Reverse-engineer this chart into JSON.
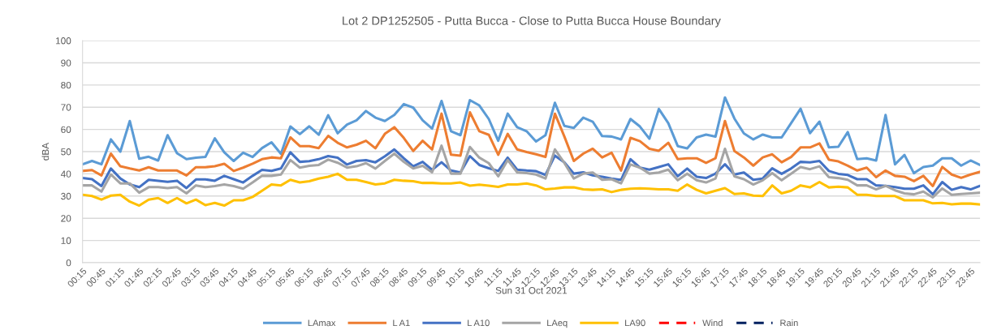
{
  "chart_data": {
    "type": "line",
    "title": "Lot 2 DP1252505 - Putta Bucca - Close to Putta Bucca House Boundary",
    "xlabel": "Sun 31 Oct 2021",
    "ylabel": "dBA",
    "categories": [
      "00:15",
      null,
      "00:45",
      null,
      "01:15",
      null,
      "01:45",
      null,
      "02:15",
      null,
      "02:45",
      null,
      "03:15",
      null,
      "03:45",
      null,
      "04:15",
      null,
      "04:45",
      null,
      "05:15",
      null,
      "05:45",
      null,
      "06:15",
      null,
      "06:45",
      null,
      "07:15",
      null,
      "07:45",
      null,
      "08:15",
      null,
      "08:45",
      null,
      "09:15",
      null,
      "09:45",
      null,
      "10:15",
      null,
      "10:45",
      null,
      "11:15",
      null,
      "11:45",
      null,
      "12:15",
      null,
      "12:45",
      null,
      "13:15",
      null,
      "13:45",
      null,
      "14:15",
      null,
      "14:45",
      null,
      "15:15",
      null,
      "15:45",
      null,
      "16:15",
      null,
      "16:45",
      null,
      "17:15",
      null,
      "17:45",
      null,
      "18:15",
      null,
      "18:45",
      null,
      "19:15",
      null,
      "19:45",
      null,
      "20:15",
      null,
      "20:45",
      null,
      "21:15",
      null,
      "21:45",
      null,
      "22:15",
      null,
      "22:45",
      null,
      "23:15",
      null,
      "23:45",
      null
    ],
    "ylim": [
      0,
      100
    ],
    "yticks": [
      0,
      10,
      20,
      30,
      40,
      50,
      60,
      70,
      80,
      90,
      100
    ],
    "grid": "y",
    "legend": "bottom",
    "marker": "none",
    "series": [
      {
        "name": "LAmax",
        "color": "#5b9bd5",
        "line_style": "solid",
        "values": [
          44.3,
          45.8,
          44.3,
          55.5,
          50,
          63.8,
          46.8,
          47.7,
          46,
          57.4,
          49.3,
          46.6,
          47.3,
          47.6,
          56,
          49.7,
          45.8,
          49.5,
          47.6,
          51.6,
          54.2,
          49,
          61.3,
          57.9,
          61.4,
          57.6,
          66.4,
          58.3,
          62.2,
          64.1,
          68.3,
          65.3,
          63.8,
          66.5,
          71.4,
          69.8,
          64.1,
          60.4,
          72.8,
          59.2,
          57.4,
          73.2,
          70.8,
          64.7,
          54.9,
          67.1,
          61,
          59.2,
          54.6,
          57.4,
          72,
          61.6,
          60.7,
          65.3,
          63.5,
          57,
          56.8,
          55.5,
          64.7,
          61.3,
          55.8,
          69.2,
          62.8,
          52.5,
          51.5,
          56.4,
          57.7,
          56.8,
          74.4,
          64.9,
          58.2,
          55.5,
          57.7,
          56.4,
          56.4,
          62.8,
          69.3,
          58.3,
          63.5,
          51.9,
          52.2,
          58.8,
          46.6,
          47,
          46,
          66.5,
          44.3,
          48.5,
          40.3,
          43.1,
          43.7,
          47,
          47,
          43.7,
          46,
          44
        ]
      },
      {
        "name": "L A1",
        "color": "#ed7d31",
        "line_style": "solid",
        "values": [
          41.3,
          41.7,
          39.3,
          49.1,
          43.4,
          42.4,
          41.5,
          43,
          41.5,
          41.5,
          41.5,
          39.3,
          43,
          43,
          43.4,
          44.5,
          41.3,
          42.8,
          44.6,
          46.6,
          47.4,
          47,
          56.4,
          52.5,
          52.5,
          51.6,
          57.1,
          54,
          51.9,
          53.1,
          54.9,
          51.5,
          58,
          61,
          56.2,
          50.3,
          54.9,
          51,
          67.1,
          48.6,
          48.2,
          67.7,
          59.2,
          57.6,
          48.6,
          58,
          51,
          49.8,
          48.8,
          47.6,
          67.1,
          56.8,
          45.8,
          49.1,
          51.3,
          47.4,
          49.5,
          41.5,
          56.2,
          54.7,
          51.3,
          50.4,
          54,
          46.6,
          47,
          47,
          44.9,
          47,
          63.8,
          50.3,
          47.4,
          43.7,
          47.4,
          48.8,
          45.2,
          47.6,
          51.9,
          51.9,
          53.7,
          46.4,
          45.6,
          43.7,
          41.5,
          42.8,
          38.5,
          41.5,
          39.1,
          38.7,
          36.7,
          39.1,
          34.5,
          43.1,
          39.7,
          38.2,
          39.7,
          40.9
        ]
      },
      {
        "name": "L A10",
        "color": "#4472c4",
        "line_style": "solid",
        "values": [
          38.1,
          37.6,
          34.5,
          42.4,
          37.9,
          35.2,
          34,
          37.3,
          36.9,
          36.4,
          36.9,
          33.6,
          37.5,
          37.5,
          36.9,
          39.1,
          37.6,
          36.1,
          39.1,
          41.8,
          41.3,
          42.4,
          49.7,
          45.4,
          45.7,
          46.6,
          48,
          47.3,
          44.2,
          45.8,
          46.2,
          45.2,
          47.9,
          51,
          47,
          43.4,
          45.4,
          41.8,
          45.2,
          41.5,
          40.6,
          48,
          44,
          42.5,
          41.3,
          47.3,
          41.9,
          41.5,
          41.2,
          39.5,
          48.2,
          45.2,
          40.1,
          40.7,
          39.3,
          38.7,
          37.9,
          37.3,
          46.6,
          42.8,
          41.9,
          43.1,
          44.3,
          38.9,
          42.4,
          38.7,
          38.1,
          40.1,
          44.3,
          39.7,
          40.6,
          37.3,
          37.9,
          42.5,
          40,
          42.4,
          45.4,
          45.2,
          45.8,
          41.3,
          40,
          39.5,
          37.6,
          37.6,
          34.8,
          34.6,
          34,
          33.3,
          33.3,
          34.8,
          30.8,
          36.3,
          32.8,
          34,
          33,
          34.6
        ]
      },
      {
        "name": "LAeq",
        "color": "#a5a5a5",
        "line_style": "solid",
        "values": [
          34.8,
          34.8,
          32,
          39.7,
          35.7,
          35.7,
          31.5,
          34,
          34,
          33.6,
          34,
          31.2,
          34.8,
          34,
          34.5,
          35.2,
          34.5,
          33.3,
          36.1,
          39.1,
          39.1,
          39.7,
          46.2,
          42.8,
          43.6,
          44,
          46.4,
          45,
          42.8,
          43.4,
          44.8,
          42.4,
          45.8,
          49.1,
          45.4,
          42.4,
          43.6,
          40.7,
          52.7,
          40.1,
          40.1,
          52.1,
          47.3,
          44.8,
          38.9,
          46.2,
          40.7,
          40.3,
          39.7,
          37.9,
          51,
          44.9,
          37.9,
          40.1,
          40.6,
          37.3,
          37.6,
          35.7,
          44.2,
          42.8,
          40.1,
          40.6,
          41.9,
          37.1,
          40.1,
          37.1,
          36.1,
          37.9,
          51.3,
          38.9,
          37.6,
          35.2,
          37.1,
          40.3,
          37.1,
          40.1,
          43.1,
          42.1,
          43.4,
          38.5,
          38.1,
          37.3,
          34.8,
          34.8,
          33,
          34.6,
          32.6,
          31.2,
          30.8,
          32,
          29.4,
          33.4,
          30.6,
          30.9,
          31.2,
          31.5
        ]
      },
      {
        "name": "LA90",
        "color": "#ffc000",
        "line_style": "solid",
        "values": [
          30.6,
          30,
          28.4,
          30.2,
          30.6,
          27.5,
          25.7,
          28.4,
          29.1,
          26.9,
          29.1,
          26.7,
          28.4,
          25.9,
          26.9,
          25.7,
          28.1,
          28.1,
          29.6,
          32.4,
          35.2,
          34.8,
          37.3,
          36.1,
          36.7,
          37.9,
          38.7,
          40,
          37.3,
          37.3,
          36.3,
          35.2,
          35.7,
          37.3,
          36.9,
          36.7,
          35.9,
          35.9,
          35.7,
          35.7,
          36.1,
          34.7,
          35.1,
          34.7,
          34.1,
          35.2,
          35.2,
          35.7,
          34.8,
          33,
          33.4,
          33.9,
          33.9,
          33,
          32.8,
          33,
          31.8,
          32.8,
          33.3,
          33.5,
          33.3,
          33,
          33,
          32.4,
          35.2,
          32.8,
          31.2,
          32.4,
          33.6,
          30.9,
          31.2,
          30.2,
          30,
          34.8,
          31.2,
          32.4,
          34.8,
          33.9,
          36.3,
          33.9,
          34.2,
          33.9,
          30.6,
          30.6,
          30,
          30,
          30,
          28.1,
          28.1,
          28.1,
          26.7,
          26.9,
          26.3,
          26.6,
          26.6,
          26.2
        ]
      },
      {
        "name": "Wind",
        "color": "#ff0000",
        "line_style": "dashed",
        "values": [
          null,
          null,
          null,
          null,
          null,
          null,
          null,
          null,
          null,
          null,
          null,
          null,
          null,
          null,
          null,
          null,
          null,
          null,
          null,
          null,
          null,
          null,
          null,
          null,
          null,
          null,
          null,
          null,
          null,
          null,
          null,
          null,
          null,
          null,
          null,
          null,
          null,
          null,
          null,
          null,
          null,
          null,
          null,
          null,
          null,
          null,
          null,
          null,
          null,
          null,
          null,
          null,
          null,
          null,
          null,
          null,
          null,
          null,
          null,
          null,
          null,
          null,
          null,
          null,
          null,
          null,
          null,
          null,
          null,
          null,
          null,
          null,
          null,
          null,
          null,
          null,
          null,
          null,
          null,
          null,
          null,
          null,
          null,
          null,
          null,
          null,
          null,
          null,
          null,
          null,
          null,
          null,
          null,
          null,
          null,
          null
        ]
      },
      {
        "name": "Rain",
        "color": "#002060",
        "line_style": "dashed",
        "values": [
          null,
          null,
          null,
          null,
          null,
          null,
          null,
          null,
          null,
          null,
          null,
          null,
          null,
          null,
          null,
          null,
          null,
          null,
          null,
          null,
          null,
          null,
          null,
          null,
          null,
          null,
          null,
          null,
          null,
          null,
          null,
          null,
          null,
          null,
          null,
          null,
          null,
          null,
          null,
          null,
          null,
          null,
          null,
          null,
          null,
          null,
          null,
          null,
          null,
          null,
          null,
          null,
          null,
          null,
          null,
          null,
          null,
          null,
          null,
          null,
          null,
          null,
          null,
          null,
          null,
          null,
          null,
          null,
          null,
          null,
          null,
          null,
          null,
          null,
          null,
          null,
          null,
          null,
          null,
          null,
          null,
          null,
          null,
          null,
          null,
          null,
          null,
          null,
          null,
          null,
          null,
          null,
          null,
          null,
          null,
          null
        ]
      }
    ]
  }
}
